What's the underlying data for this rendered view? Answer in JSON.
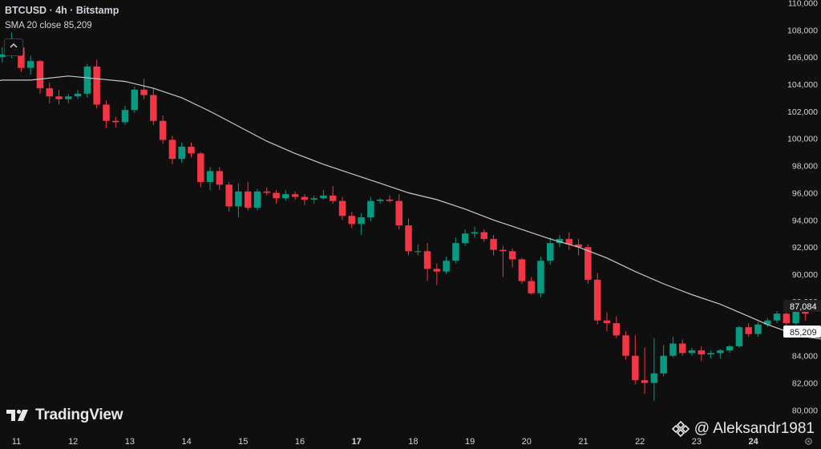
{
  "header": {
    "symbol_line": "BTCUSD · 4h · Bitstamp",
    "indicator_line": "SMA 20 close  85,209"
  },
  "price_axis": {
    "last_price_label": "87,084",
    "sma_label": "85,209",
    "last_price_color": "#1f1f1f",
    "sma_label_color": "#ffffff"
  },
  "colors": {
    "background": "#0f0f0f",
    "up": "#089981",
    "down": "#f23645",
    "sma_line": "#c9c9c9",
    "axis_text": "#d1d4dc"
  },
  "branding": {
    "logo_text": "TradingView",
    "watermark_text": "@ Aleksandr1981"
  },
  "icons": {
    "collapse": "chevron-up-icon",
    "logo": "tradingview-logo-icon",
    "watermark": "binance-logo-icon",
    "settings": "gear-icon"
  },
  "chart_data": {
    "type": "candlestick",
    "title": "BTCUSD · 4h · Bitstamp",
    "y_ticks": [
      80000,
      82000,
      84000,
      86000,
      88000,
      90000,
      92000,
      94000,
      96000,
      98000,
      100000,
      102000,
      104000,
      106000,
      108000,
      110000
    ],
    "y_tick_labels": [
      "80,000",
      "82,000",
      "84,000",
      "86,000",
      "88,000",
      "90,000",
      "92,000",
      "94,000",
      "96,000",
      "98,000",
      "100,000",
      "102,000",
      "104,000",
      "106,000",
      "108,000",
      "110,000"
    ],
    "ylim": [
      79200,
      110200
    ],
    "x_tick_labels": [
      "11",
      "12",
      "13",
      "14",
      "15",
      "16",
      "17",
      "18",
      "19",
      "20",
      "21",
      "22",
      "23",
      "24"
    ],
    "x_bold_labels": [
      "17",
      "24"
    ],
    "bars_per_day": 6,
    "first_bar_offset": -3,
    "grid": false,
    "candles": [
      [
        105300,
        106300,
        104700,
        106000
      ],
      [
        106000,
        106700,
        105600,
        106200
      ],
      [
        106200,
        107800,
        105900,
        106700
      ],
      [
        106700,
        106900,
        104900,
        105200
      ],
      [
        105200,
        106100,
        104700,
        105700
      ],
      [
        105700,
        105800,
        103300,
        103700
      ],
      [
        103700,
        104100,
        102600,
        103100
      ],
      [
        103100,
        103600,
        102500,
        102900
      ],
      [
        102900,
        103300,
        102600,
        103100
      ],
      [
        103100,
        103600,
        102900,
        103300
      ],
      [
        103300,
        105500,
        103000,
        105300
      ],
      [
        105300,
        105800,
        102200,
        102500
      ],
      [
        102500,
        102800,
        100800,
        101300
      ],
      [
        101300,
        101600,
        100800,
        101200
      ],
      [
        101200,
        102400,
        101000,
        102100
      ],
      [
        102100,
        103800,
        101900,
        103600
      ],
      [
        103600,
        104400,
        102900,
        103200
      ],
      [
        103200,
        103700,
        101000,
        101300
      ],
      [
        101300,
        101700,
        99600,
        99900
      ],
      [
        99900,
        100200,
        98100,
        98500
      ],
      [
        98500,
        99700,
        98200,
        99400
      ],
      [
        99400,
        99700,
        98600,
        98900
      ],
      [
        98900,
        99000,
        96400,
        96800
      ],
      [
        96800,
        97900,
        96200,
        97600
      ],
      [
        97600,
        97900,
        96200,
        96600
      ],
      [
        96600,
        96800,
        94600,
        95000
      ],
      [
        95000,
        96700,
        94200,
        96100
      ],
      [
        96100,
        96800,
        94700,
        94900
      ],
      [
        94900,
        96300,
        94700,
        96100
      ],
      [
        96100,
        96400,
        95800,
        96000
      ],
      [
        96000,
        96200,
        95200,
        95600
      ],
      [
        95600,
        96200,
        95400,
        95900
      ],
      [
        95900,
        96100,
        95500,
        95700
      ],
      [
        95700,
        95900,
        95100,
        95500
      ],
      [
        95500,
        95800,
        95200,
        95600
      ],
      [
        95600,
        96200,
        95500,
        95800
      ],
      [
        95800,
        96500,
        95200,
        95400
      ],
      [
        95400,
        95700,
        94000,
        94300
      ],
      [
        94300,
        94600,
        93400,
        93700
      ],
      [
        93700,
        94500,
        92900,
        94200
      ],
      [
        94200,
        95700,
        93900,
        95400
      ],
      [
        95400,
        95600,
        95200,
        95500
      ],
      [
        95500,
        95800,
        95300,
        95400
      ],
      [
        95400,
        95900,
        93300,
        93600
      ],
      [
        93600,
        94100,
        91400,
        91700
      ],
      [
        91700,
        92200,
        91400,
        91700
      ],
      [
        91700,
        92300,
        89500,
        90400
      ],
      [
        90400,
        90800,
        89200,
        90200
      ],
      [
        90200,
        91300,
        90000,
        91000
      ],
      [
        91000,
        92700,
        90800,
        92300
      ],
      [
        92300,
        93300,
        92100,
        93000
      ],
      [
        93000,
        93500,
        92700,
        93100
      ],
      [
        93100,
        93300,
        92400,
        92600
      ],
      [
        92600,
        92900,
        91400,
        91800
      ],
      [
        91800,
        92100,
        89800,
        91700
      ],
      [
        91700,
        91900,
        90500,
        91100
      ],
      [
        91100,
        91200,
        89300,
        89500
      ],
      [
        89500,
        89800,
        88500,
        88600
      ],
      [
        88600,
        91300,
        88300,
        91000
      ],
      [
        91000,
        92700,
        90700,
        92300
      ],
      [
        92300,
        92900,
        92000,
        92600
      ],
      [
        92600,
        93100,
        91800,
        92200
      ],
      [
        92200,
        92600,
        91400,
        92000
      ],
      [
        92000,
        92200,
        89300,
        89600
      ],
      [
        89600,
        90100,
        86300,
        86600
      ],
      [
        86600,
        87200,
        85800,
        86400
      ],
      [
        86400,
        86900,
        85300,
        85500
      ],
      [
        85500,
        85800,
        83700,
        84000
      ],
      [
        84000,
        85500,
        81900,
        82200
      ],
      [
        82200,
        84600,
        81200,
        82000
      ],
      [
        82000,
        85300,
        80700,
        82700
      ],
      [
        82700,
        84800,
        82500,
        84000
      ],
      [
        84000,
        85400,
        83900,
        84900
      ],
      [
        84900,
        85200,
        84000,
        84200
      ],
      [
        84200,
        84600,
        84000,
        84400
      ],
      [
        84400,
        84700,
        83600,
        84100
      ],
      [
        84100,
        84400,
        83800,
        84200
      ],
      [
        84200,
        84500,
        83800,
        84400
      ],
      [
        84400,
        84800,
        84200,
        84700
      ],
      [
        84700,
        86200,
        84600,
        86100
      ],
      [
        86100,
        86400,
        85400,
        85600
      ],
      [
        85600,
        86500,
        85400,
        86300
      ],
      [
        86300,
        86800,
        86100,
        86600
      ],
      [
        86600,
        87300,
        86400,
        87100
      ],
      [
        87100,
        87200,
        86200,
        86400
      ],
      [
        86400,
        87800,
        86300,
        87300
      ],
      [
        87300,
        87600,
        86600,
        87100
      ]
    ],
    "sma": [
      [
        -4,
        103500
      ],
      [
        -2,
        103900
      ],
      [
        1,
        104300
      ],
      [
        4,
        104300
      ],
      [
        8,
        104600
      ],
      [
        11,
        104400
      ],
      [
        14,
        104200
      ],
      [
        17,
        103700
      ],
      [
        20,
        103000
      ],
      [
        23,
        102000
      ],
      [
        26,
        100900
      ],
      [
        29,
        99800
      ],
      [
        32,
        98900
      ],
      [
        35,
        98100
      ],
      [
        38,
        97400
      ],
      [
        41,
        96700
      ],
      [
        44,
        96000
      ],
      [
        47,
        95500
      ],
      [
        50,
        94800
      ],
      [
        53,
        94000
      ],
      [
        56,
        93300
      ],
      [
        59,
        92600
      ],
      [
        62,
        92000
      ],
      [
        65,
        91200
      ],
      [
        68,
        90200
      ],
      [
        71,
        89300
      ],
      [
        74,
        88500
      ],
      [
        77,
        87800
      ],
      [
        80,
        86900
      ],
      [
        82,
        86300
      ],
      [
        84,
        85800
      ],
      [
        86,
        85400
      ],
      [
        88,
        85200
      ],
      [
        90,
        85209
      ]
    ]
  }
}
